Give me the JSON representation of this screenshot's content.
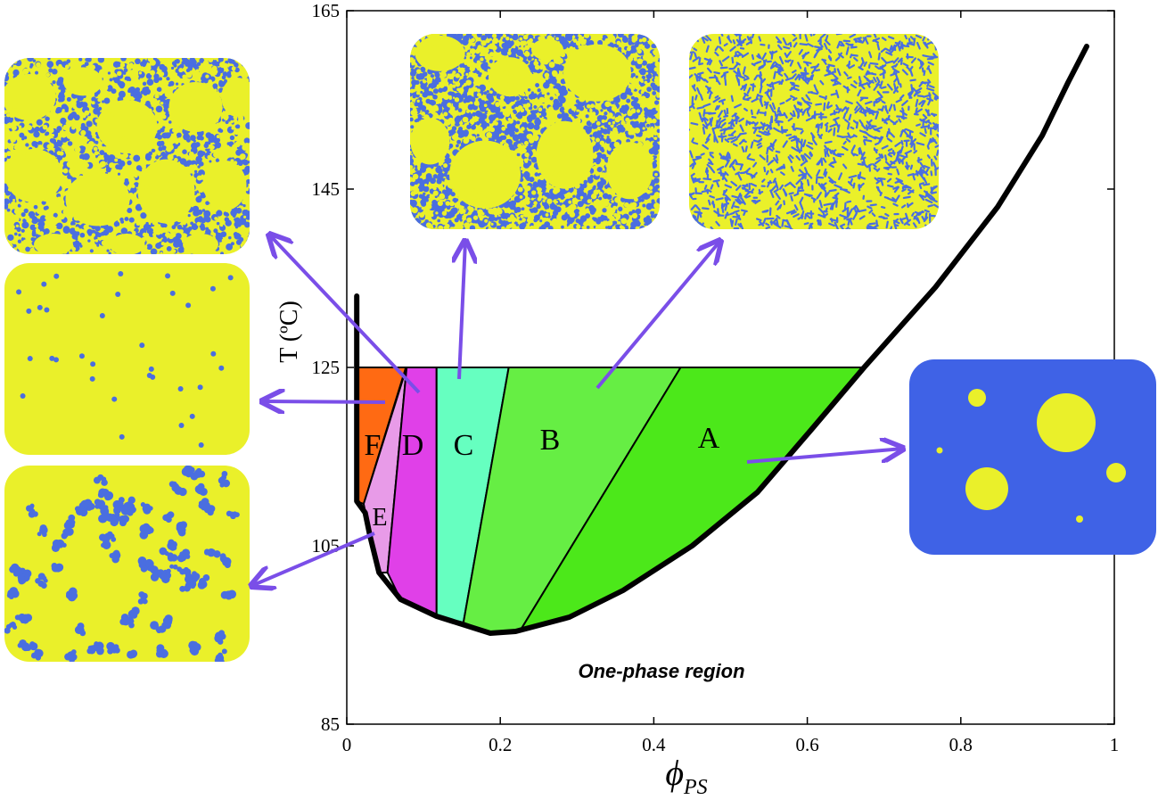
{
  "chart_data": {
    "type": "area",
    "annotation": "One-phase region",
    "ylabel": "T (ºC)",
    "xlabel_symbol": "ϕ",
    "xlabel_subscript": "PS",
    "xlim": [
      0,
      1
    ],
    "ylim": [
      85,
      165
    ],
    "xticks": [
      0,
      0.2,
      0.4,
      0.6,
      0.8,
      1
    ],
    "yticks": [
      85,
      105,
      125,
      145,
      165
    ],
    "curve": {
      "color": "#000000",
      "x": [
        0.013,
        0.013,
        0.024,
        0.03,
        0.042,
        0.07,
        0.117,
        0.187,
        0.22,
        0.29,
        0.36,
        0.45,
        0.535,
        0.605,
        0.674,
        0.767,
        0.848,
        0.906,
        0.94,
        0.964
      ],
      "y": [
        133,
        110,
        108.7,
        106.2,
        102,
        99,
        97.1,
        95.2,
        95.4,
        97,
        100,
        105,
        111,
        118,
        125,
        134,
        143,
        151,
        157,
        161
      ]
    },
    "regions": [
      {
        "name": "F",
        "color": "#ff6a13",
        "x": [
          0.013,
          0.077,
          0.022,
          0.013
        ],
        "y": [
          125,
          125,
          109.7,
          110
        ]
      },
      {
        "name": "E",
        "color": "#e89be8",
        "x": [
          0.022,
          0.078,
          0.053,
          0.042,
          0.03
        ],
        "y": [
          109.7,
          125,
          102,
          102,
          106.2
        ]
      },
      {
        "name": "D",
        "color": "#e040e8",
        "x": [
          0.078,
          0.117,
          0.117,
          0.07,
          0.053
        ],
        "y": [
          125,
          125,
          97.1,
          99,
          102
        ]
      },
      {
        "name": "C",
        "color": "#66ffc0",
        "x": [
          0.117,
          0.211,
          0.152,
          0.117
        ],
        "y": [
          125,
          125,
          96.4,
          97.1
        ]
      },
      {
        "name": "B",
        "color": "#66ee44",
        "x": [
          0.211,
          0.435,
          0.226,
          0.187,
          0.152
        ],
        "y": [
          125,
          125,
          95.5,
          95.2,
          96.4
        ]
      },
      {
        "name": "A",
        "color": "#4ce81a",
        "x": [
          0.435,
          0.674,
          0.605,
          0.535,
          0.45,
          0.36,
          0.29,
          0.226
        ],
        "y": [
          125,
          125,
          118,
          111,
          105,
          100,
          97,
          95.5
        ]
      }
    ]
  }
}
